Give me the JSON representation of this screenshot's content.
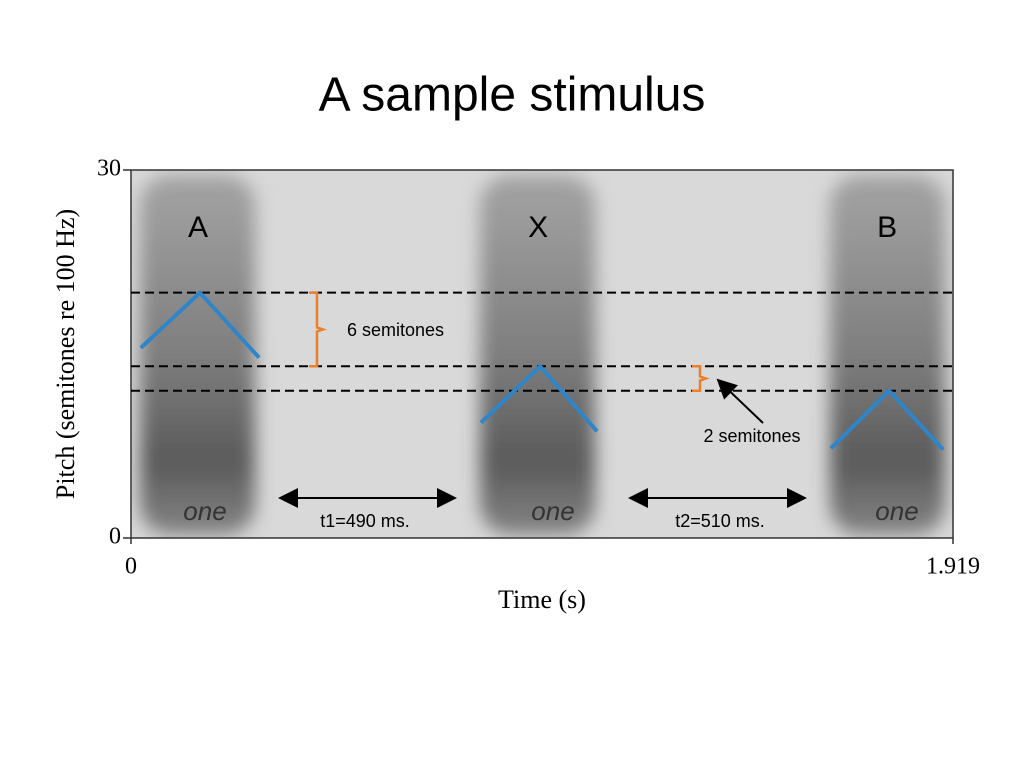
{
  "title": "A sample stimulus",
  "chart_data": {
    "type": "line",
    "xlabel": "Time (s)",
    "ylabel": "Pitch (semitones re 100 Hz)",
    "xlim": [
      0,
      1.919
    ],
    "ylim": [
      0,
      30
    ],
    "xticks": [
      0,
      1.919
    ],
    "yticks": [
      0,
      30
    ],
    "reference_lines": [
      20,
      14,
      12
    ],
    "series": [
      {
        "name": "A",
        "color": "#2e86c8",
        "x": [
          0.023,
          0.161,
          0.299
        ],
        "values": [
          15.5,
          20,
          14.7
        ]
      },
      {
        "name": "X",
        "color": "#2e86c8",
        "x": [
          0.817,
          0.955,
          1.088
        ],
        "values": [
          9.4,
          14,
          8.7
        ]
      },
      {
        "name": "B",
        "color": "#2e86c8",
        "x": [
          1.634,
          1.77,
          1.896
        ],
        "values": [
          7.3,
          12,
          7.2
        ]
      }
    ],
    "annotations": [
      "6 semitones",
      "2 semitones",
      "t1=490 ms.",
      "t2=510 ms.",
      "one",
      "one",
      "one"
    ]
  }
}
